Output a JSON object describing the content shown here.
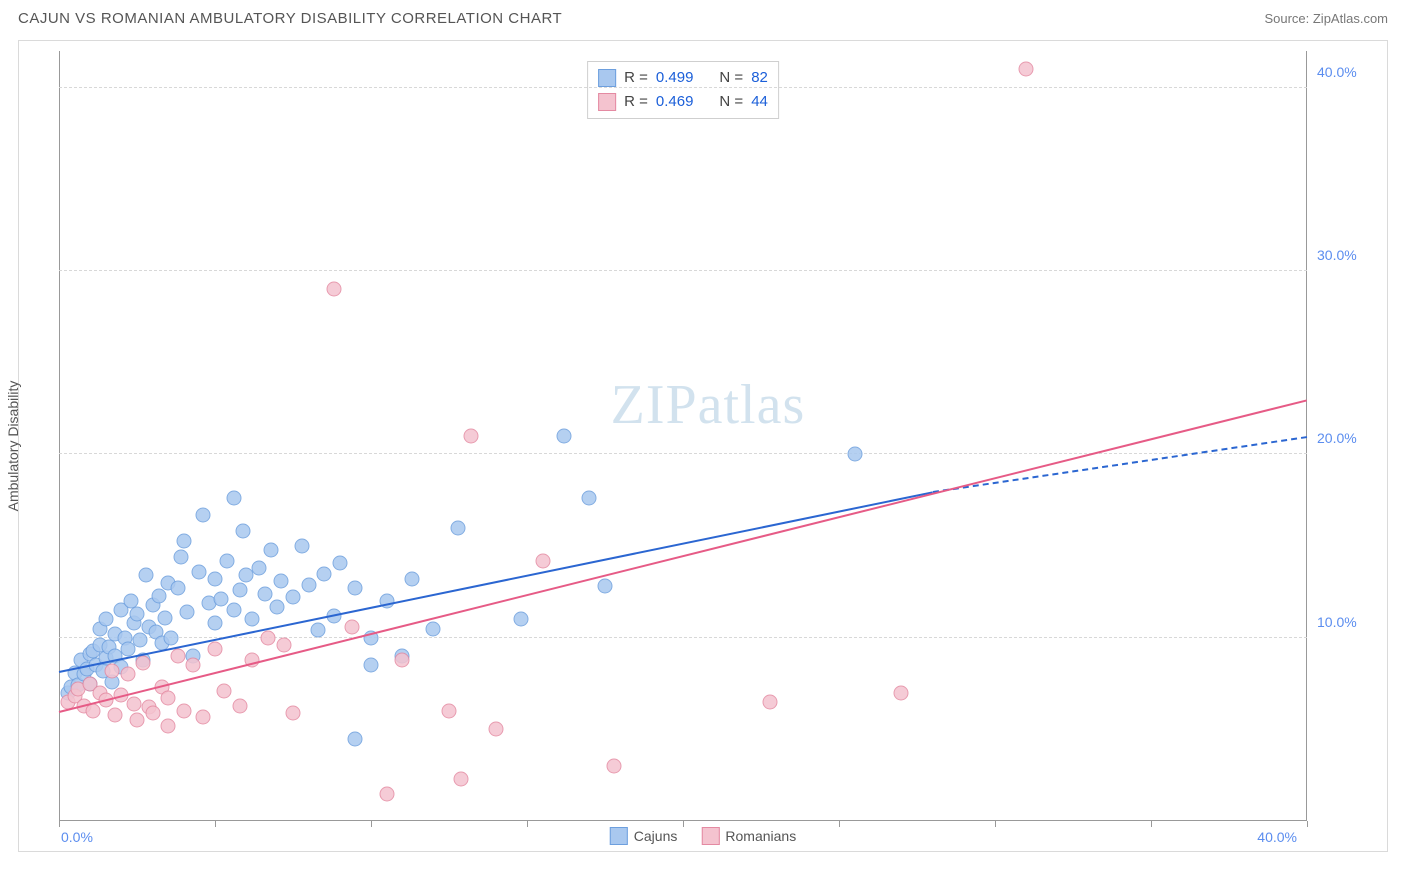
{
  "header": {
    "title": "CAJUN VS ROMANIAN AMBULATORY DISABILITY CORRELATION CHART",
    "source": "Source: ZipAtlas.com"
  },
  "chart": {
    "type": "scatter",
    "ylabel": "Ambulatory Disability",
    "watermark_bold": "ZIP",
    "watermark_light": "atlas",
    "xlim": [
      0,
      40
    ],
    "ylim": [
      0,
      42
    ],
    "xtick_positions": [
      0,
      5,
      10,
      15,
      20,
      25,
      30,
      35,
      40
    ],
    "ytick_positions": [
      10,
      20,
      30,
      40
    ],
    "ytick_labels": [
      "10.0%",
      "20.0%",
      "30.0%",
      "40.0%"
    ],
    "xaxis_label_left": "0.0%",
    "xaxis_label_right": "40.0%",
    "background_color": "#ffffff",
    "grid_color": "#d8d8d8",
    "axis_label_color": "#5b8def",
    "series": [
      {
        "name": "Cajuns",
        "fill_color": "#a9c8ef",
        "stroke_color": "#6d9fde",
        "line_color": "#2b66d1",
        "r_value": "0.499",
        "n_value": "82",
        "regression": {
          "x1": 0,
          "y1": 8.2,
          "x2": 28,
          "y2": 18.0,
          "dash_to_x": 40,
          "dash_to_y": 21.0
        },
        "points": [
          [
            0.3,
            7.0
          ],
          [
            0.4,
            7.3
          ],
          [
            0.5,
            8.1
          ],
          [
            0.6,
            7.4
          ],
          [
            0.7,
            8.8
          ],
          [
            0.8,
            8.0
          ],
          [
            0.9,
            8.3
          ],
          [
            1.0,
            9.1
          ],
          [
            1.0,
            7.5
          ],
          [
            1.1,
            9.3
          ],
          [
            1.2,
            8.5
          ],
          [
            1.3,
            9.6
          ],
          [
            1.3,
            10.5
          ],
          [
            1.4,
            8.2
          ],
          [
            1.5,
            8.9
          ],
          [
            1.5,
            11.0
          ],
          [
            1.6,
            9.5
          ],
          [
            1.7,
            7.6
          ],
          [
            1.8,
            10.2
          ],
          [
            1.8,
            9.0
          ],
          [
            2.0,
            8.4
          ],
          [
            2.0,
            11.5
          ],
          [
            2.1,
            10.0
          ],
          [
            2.2,
            9.4
          ],
          [
            2.3,
            12.0
          ],
          [
            2.4,
            10.8
          ],
          [
            2.5,
            11.3
          ],
          [
            2.6,
            9.9
          ],
          [
            2.7,
            8.8
          ],
          [
            2.8,
            13.4
          ],
          [
            2.9,
            10.6
          ],
          [
            3.0,
            11.8
          ],
          [
            3.1,
            10.3
          ],
          [
            3.2,
            12.3
          ],
          [
            3.3,
            9.7
          ],
          [
            3.4,
            11.1
          ],
          [
            3.5,
            13.0
          ],
          [
            3.6,
            10.0
          ],
          [
            3.8,
            12.7
          ],
          [
            3.9,
            14.4
          ],
          [
            4.0,
            15.3
          ],
          [
            4.1,
            11.4
          ],
          [
            4.3,
            9.0
          ],
          [
            4.5,
            13.6
          ],
          [
            4.6,
            16.7
          ],
          [
            4.8,
            11.9
          ],
          [
            5.0,
            13.2
          ],
          [
            5.0,
            10.8
          ],
          [
            5.2,
            12.1
          ],
          [
            5.4,
            14.2
          ],
          [
            5.6,
            11.5
          ],
          [
            5.6,
            17.6
          ],
          [
            5.8,
            12.6
          ],
          [
            5.9,
            15.8
          ],
          [
            6.0,
            13.4
          ],
          [
            6.2,
            11.0
          ],
          [
            6.4,
            13.8
          ],
          [
            6.6,
            12.4
          ],
          [
            6.8,
            14.8
          ],
          [
            7.0,
            11.7
          ],
          [
            7.1,
            13.1
          ],
          [
            7.5,
            12.2
          ],
          [
            7.8,
            15.0
          ],
          [
            8.0,
            12.9
          ],
          [
            8.3,
            10.4
          ],
          [
            8.5,
            13.5
          ],
          [
            8.8,
            11.2
          ],
          [
            9.0,
            14.1
          ],
          [
            9.5,
            12.7
          ],
          [
            9.5,
            4.5
          ],
          [
            10.0,
            10.0
          ],
          [
            10.0,
            8.5
          ],
          [
            10.5,
            12.0
          ],
          [
            11.0,
            9.0
          ],
          [
            11.3,
            13.2
          ],
          [
            12.0,
            10.5
          ],
          [
            12.8,
            16.0
          ],
          [
            14.8,
            11.0
          ],
          [
            16.2,
            21.0
          ],
          [
            17.0,
            17.6
          ],
          [
            17.5,
            12.8
          ],
          [
            25.5,
            20.0
          ]
        ]
      },
      {
        "name": "Romanians",
        "fill_color": "#f4c3cf",
        "stroke_color": "#e48aa2",
        "line_color": "#e65b86",
        "r_value": "0.469",
        "n_value": "44",
        "regression": {
          "x1": 0,
          "y1": 6.0,
          "x2": 40,
          "y2": 23.0,
          "dash_to_x": null,
          "dash_to_y": null
        },
        "points": [
          [
            0.3,
            6.5
          ],
          [
            0.5,
            6.8
          ],
          [
            0.6,
            7.2
          ],
          [
            0.8,
            6.3
          ],
          [
            1.0,
            7.5
          ],
          [
            1.1,
            6.0
          ],
          [
            1.3,
            7.0
          ],
          [
            1.5,
            6.6
          ],
          [
            1.7,
            8.2
          ],
          [
            1.8,
            5.8
          ],
          [
            2.0,
            6.9
          ],
          [
            2.2,
            8.0
          ],
          [
            2.4,
            6.4
          ],
          [
            2.5,
            5.5
          ],
          [
            2.7,
            8.6
          ],
          [
            2.9,
            6.2
          ],
          [
            3.0,
            5.9
          ],
          [
            3.3,
            7.3
          ],
          [
            3.5,
            6.7
          ],
          [
            3.5,
            5.2
          ],
          [
            3.8,
            9.0
          ],
          [
            4.0,
            6.0
          ],
          [
            4.3,
            8.5
          ],
          [
            4.6,
            5.7
          ],
          [
            5.0,
            9.4
          ],
          [
            5.3,
            7.1
          ],
          [
            5.8,
            6.3
          ],
          [
            6.2,
            8.8
          ],
          [
            6.7,
            10.0
          ],
          [
            7.2,
            9.6
          ],
          [
            7.5,
            5.9
          ],
          [
            8.8,
            29.0
          ],
          [
            9.4,
            10.6
          ],
          [
            10.5,
            1.5
          ],
          [
            11.0,
            8.8
          ],
          [
            12.5,
            6.0
          ],
          [
            12.9,
            2.3
          ],
          [
            13.2,
            21.0
          ],
          [
            14.0,
            5.0
          ],
          [
            15.5,
            14.2
          ],
          [
            17.8,
            3.0
          ],
          [
            22.8,
            6.5
          ],
          [
            27.0,
            7.0
          ],
          [
            31.0,
            41.0
          ]
        ]
      }
    ],
    "bottom_legend": [
      {
        "label": "Cajuns",
        "fill": "#a9c8ef",
        "stroke": "#6d9fde"
      },
      {
        "label": "Romanians",
        "fill": "#f4c3cf",
        "stroke": "#e48aa2"
      }
    ]
  }
}
